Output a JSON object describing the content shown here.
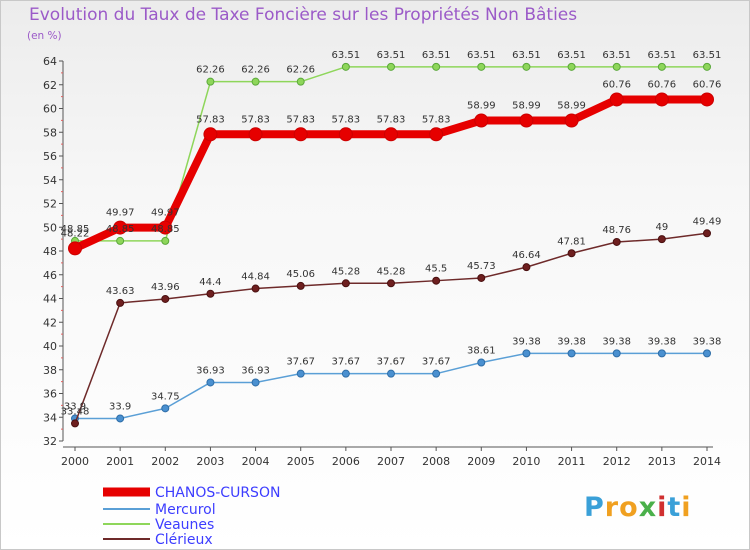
{
  "chart_data": {
    "type": "line",
    "title": "Evolution du Taux de Taxe Foncière sur les Propriétés Non Bâties",
    "ylabel": "(en %)",
    "x": [
      "2000",
      "2001",
      "2002",
      "2003",
      "2004",
      "2005",
      "2006",
      "2007",
      "2008",
      "2009",
      "2010",
      "2011",
      "2012",
      "2013",
      "2014"
    ],
    "ylim": [
      32,
      64
    ],
    "yticks": [
      32,
      34,
      36,
      38,
      40,
      42,
      44,
      46,
      48,
      50,
      52,
      54,
      56,
      58,
      60,
      62,
      64
    ],
    "grid": false,
    "legend_position": "bottom-left",
    "series": [
      {
        "name": "CHANOS-CURSON",
        "color": "#e60000",
        "values": [
          48.22,
          49.97,
          49.97,
          57.83,
          57.83,
          57.83,
          57.83,
          57.83,
          57.83,
          58.99,
          58.99,
          58.99,
          60.76,
          60.76,
          60.76
        ]
      },
      {
        "name": "Mercurol",
        "color": "#5a9fd6",
        "values": [
          33.9,
          33.9,
          34.75,
          36.93,
          36.93,
          37.67,
          37.67,
          37.67,
          37.67,
          38.61,
          39.38,
          39.38,
          39.38,
          39.38,
          39.38
        ]
      },
      {
        "name": "Veaunes",
        "color": "#8ed65a",
        "values": [
          48.85,
          48.85,
          48.85,
          62.26,
          62.26,
          62.26,
          63.51,
          63.51,
          63.51,
          63.51,
          63.51,
          63.51,
          63.51,
          63.51,
          63.51
        ]
      },
      {
        "name": "Clérieux",
        "color": "#6e2a2a",
        "values": [
          33.48,
          43.63,
          43.96,
          44.4,
          44.84,
          45.06,
          45.28,
          45.28,
          45.5,
          45.73,
          46.64,
          47.81,
          48.76,
          49,
          49.49
        ]
      }
    ],
    "data_labels": {
      "CHANOS-CURSON": [
        "48.22",
        "49.97",
        "49.97",
        "57.83",
        "57.83",
        "57.83",
        "57.83",
        "57.83",
        "57.83",
        "58.99",
        "58.99",
        "58.99",
        "60.76",
        "60.76",
        "60.76"
      ],
      "Mercurol": [
        "33.9",
        "33.9",
        "34.75",
        "36.93",
        "36.93",
        "37.67",
        "37.67",
        "37.67",
        "37.67",
        "38.61",
        "39.38",
        "39.38",
        "39.38",
        "39.38",
        "39.38"
      ],
      "Veaunes": [
        "48.85",
        "48.85",
        "48.85",
        "62.26",
        "62.26",
        "62.26",
        "63.51",
        "63.51",
        "63.51",
        "63.51",
        "63.51",
        "63.51",
        "63.51",
        "63.51",
        "63.51"
      ],
      "Clérieux": [
        "33.48",
        "43.63",
        "43.96",
        "44.4",
        "44.84",
        "45.06",
        "45.28",
        "45.28",
        "45.5",
        "45.73",
        "46.64",
        "47.81",
        "48.76",
        "49",
        "49.49"
      ]
    }
  },
  "logo": {
    "letters": [
      "P",
      "r",
      "o",
      "x",
      "i",
      "t",
      "i"
    ],
    "colors": [
      "#3aa0d8",
      "#f0a020",
      "#f0a020",
      "#4ab04a",
      "#d03030",
      "#3aa0d8",
      "#f0a020"
    ]
  }
}
